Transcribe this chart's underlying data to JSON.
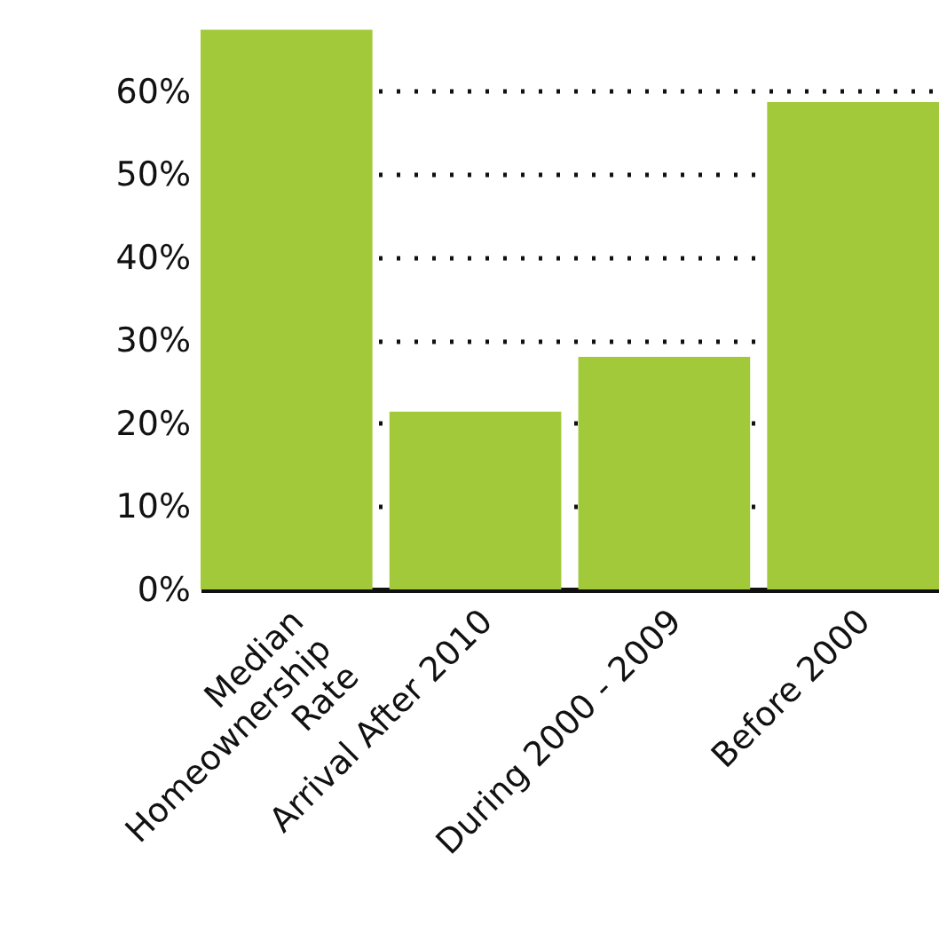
{
  "chart_data": {
    "type": "bar",
    "categories": [
      "Median Homeownership Rate",
      "Arrival After 2010",
      "During 2000 - 2009",
      "Before 2000"
    ],
    "values": [
      67.4,
      21.4,
      28.0,
      58.7
    ],
    "color": "#a2c93a",
    "ylim": [
      0,
      68
    ],
    "yticks": [
      {
        "value": 0,
        "label": "0%"
      },
      {
        "value": 10,
        "label": "10%"
      },
      {
        "value": 20,
        "label": "20%"
      },
      {
        "value": 30,
        "label": "30%"
      },
      {
        "value": 40,
        "label": "40%"
      },
      {
        "value": 50,
        "label": "50%"
      },
      {
        "value": 60,
        "label": "60%"
      }
    ],
    "grid": "y"
  }
}
